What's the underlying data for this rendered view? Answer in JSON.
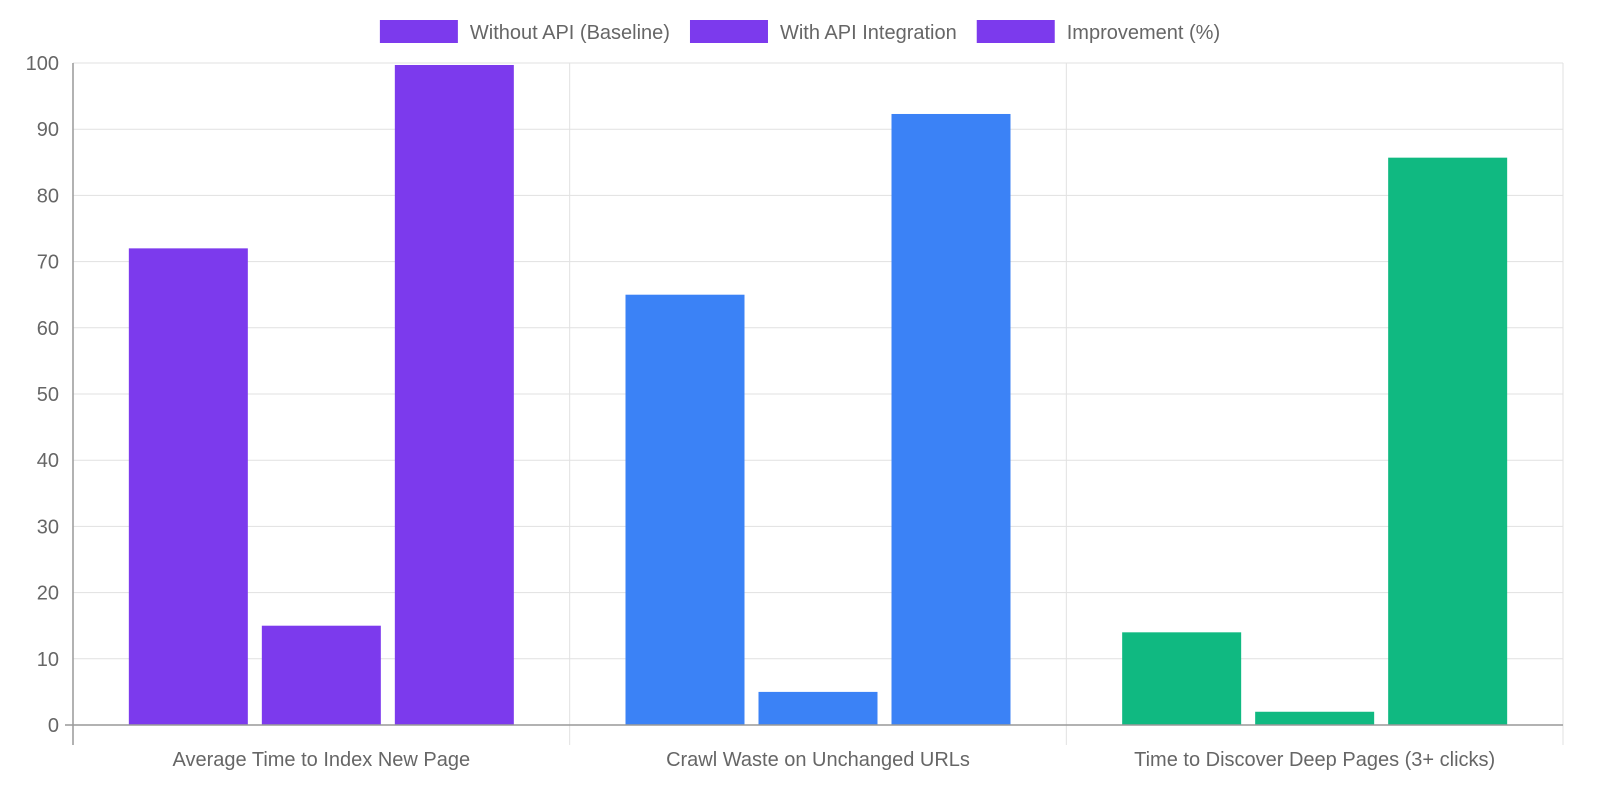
{
  "chart_data": {
    "type": "bar",
    "categories": [
      "Average Time to Index New Page",
      "Crawl Waste on Unchanged URLs",
      "Time to Discover Deep Pages (3+ clicks)"
    ],
    "series": [
      {
        "name": "Without API (Baseline)",
        "values": [
          72,
          65,
          14
        ]
      },
      {
        "name": "With API Integration",
        "values": [
          15,
          5,
          2
        ]
      },
      {
        "name": "Improvement (%)",
        "values": [
          99.7,
          92.3,
          85.7
        ]
      }
    ],
    "category_colors": [
      "#7c3aed",
      "#3b82f6",
      "#10b981"
    ],
    "legend_color": "#7c3aed",
    "ylim": [
      0,
      100
    ],
    "yticks": [
      "0",
      "10",
      "20",
      "30",
      "40",
      "50",
      "60",
      "70",
      "80",
      "90",
      "100"
    ],
    "grid": true,
    "legend_position": "top-center"
  }
}
